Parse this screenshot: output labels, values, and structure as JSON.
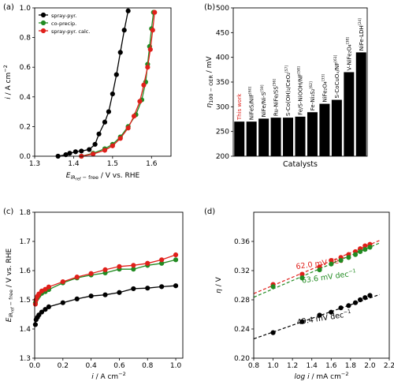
{
  "chart_data": [
    {
      "panel": "(a)",
      "type": "line",
      "xlabel_main": "E",
      "xlabel_sub": "iR",
      "xlabel_subsub": "ref",
      "xlabel_subtail": " − free",
      "xlabel_tail": " / V vs. RHE",
      "ylabel_main": "i",
      "ylabel_tail": " / A cm",
      "ylabel_sup": "−2",
      "xlim": [
        1.3,
        1.65
      ],
      "ylim": [
        0,
        1.0
      ],
      "xticks": [
        "1.3",
        "1.4",
        "1.5",
        "1.6"
      ],
      "yticks": [
        "0.0",
        "0.2",
        "0.4",
        "0.6",
        "0.8",
        "1.0"
      ],
      "legend": {
        "position": "top-left"
      },
      "series": [
        {
          "name": "spray-pyr.",
          "color": "#000000",
          "points": [
            [
              1.36,
              0.0
            ],
            [
              1.38,
              0.01
            ],
            [
              1.39,
              0.02
            ],
            [
              1.405,
              0.03
            ],
            [
              1.42,
              0.035
            ],
            [
              1.44,
              0.045
            ],
            [
              1.455,
              0.08
            ],
            [
              1.465,
              0.15
            ],
            [
              1.48,
              0.23
            ],
            [
              1.49,
              0.3
            ],
            [
              1.5,
              0.42
            ],
            [
              1.51,
              0.55
            ],
            [
              1.52,
              0.7
            ],
            [
              1.53,
              0.85
            ],
            [
              1.54,
              0.98
            ]
          ]
        },
        {
          "name": "co-precip.",
          "color": "#228B22",
          "points": [
            [
              1.42,
              0.0
            ],
            [
              1.45,
              0.02
            ],
            [
              1.48,
              0.05
            ],
            [
              1.5,
              0.08
            ],
            [
              1.52,
              0.13
            ],
            [
              1.54,
              0.2
            ],
            [
              1.56,
              0.28
            ],
            [
              1.575,
              0.38
            ],
            [
              1.585,
              0.5
            ],
            [
              1.59,
              0.62
            ],
            [
              1.595,
              0.74
            ],
            [
              1.6,
              0.86
            ],
            [
              1.605,
              0.97
            ]
          ]
        },
        {
          "name": "spray-pyr. calc.",
          "color": "#E0201B",
          "points": [
            [
              1.42,
              0.0
            ],
            [
              1.45,
              0.015
            ],
            [
              1.48,
              0.04
            ],
            [
              1.5,
              0.07
            ],
            [
              1.52,
              0.12
            ],
            [
              1.54,
              0.19
            ],
            [
              1.555,
              0.27
            ],
            [
              1.57,
              0.37
            ],
            [
              1.58,
              0.48
            ],
            [
              1.59,
              0.6
            ],
            [
              1.597,
              0.72
            ],
            [
              1.603,
              0.85
            ],
            [
              1.608,
              0.97
            ]
          ]
        }
      ]
    },
    {
      "panel": "(b)",
      "type": "bar",
      "xlabel": "Catalysts",
      "ylabel_main": "η",
      "ylabel_sub": "100 − OER",
      "ylabel_tail": " / mV",
      "ylim": [
        200,
        500
      ],
      "yticks": [
        "200",
        "250",
        "300",
        "350",
        "400",
        "450",
        "500"
      ],
      "categories": [
        {
          "label": "This work",
          "ref": "",
          "color": "#E0201B"
        },
        {
          "label": "NiFeS/NIF",
          "ref": "[60]",
          "color": "#000000"
        },
        {
          "label": "NiFe/Ni-S",
          "ref": "[59]",
          "color": "#000000"
        },
        {
          "label": "Ru-NiFe/SS",
          "ref": "[56]",
          "color": "#000000"
        },
        {
          "label": "S-Co(OH)₂/CeO₂",
          "ref": "[57]",
          "color": "#000000"
        },
        {
          "label": "Fe/S-NiOOH/NF",
          "ref": "[58]",
          "color": "#000000"
        },
        {
          "label": "Fe-Ni₃S₂",
          "ref": "[62]",
          "color": "#000000"
        },
        {
          "label": "NiFe₂O₄",
          "ref": "[33]",
          "color": "#000000"
        },
        {
          "label": "S-CoCuOₓ/NF",
          "ref": "[61]",
          "color": "#000000"
        },
        {
          "label": "V-NiFe₂O₄",
          "ref": "[38]",
          "color": "#000000"
        },
        {
          "label": "NiFe-LDH",
          "ref": "[24]",
          "color": "#000000"
        }
      ],
      "values": [
        270,
        270,
        276,
        278,
        278,
        280,
        289,
        306,
        314,
        370,
        410
      ]
    },
    {
      "panel": "(c)",
      "type": "line",
      "xlabel_main": "i",
      "xlabel_tail": " / A cm",
      "xlabel_sup": "−2",
      "ylabel_main": "E",
      "ylabel_sub": "iR",
      "ylabel_subsub": "ref",
      "ylabel_subtail": " − free",
      "ylabel_tail": " / V vs. RHE",
      "xlim": [
        0,
        1.05
      ],
      "ylim": [
        1.3,
        1.8
      ],
      "xticks": [
        "0.0",
        "0.2",
        "0.4",
        "0.6",
        "0.8",
        "1.0"
      ],
      "yticks": [
        "1.3",
        "1.4",
        "1.5",
        "1.6",
        "1.7",
        "1.8"
      ],
      "series": [
        {
          "name": "spray-pyr.",
          "color": "#000000",
          "points": [
            [
              0.005,
              1.415
            ],
            [
              0.01,
              1.432
            ],
            [
              0.02,
              1.44
            ],
            [
              0.03,
              1.448
            ],
            [
              0.05,
              1.458
            ],
            [
              0.075,
              1.467
            ],
            [
              0.1,
              1.476
            ],
            [
              0.2,
              1.49
            ],
            [
              0.3,
              1.503
            ],
            [
              0.4,
              1.513
            ],
            [
              0.5,
              1.517
            ],
            [
              0.6,
              1.525
            ],
            [
              0.7,
              1.538
            ],
            [
              0.8,
              1.54
            ],
            [
              0.9,
              1.545
            ],
            [
              1.0,
              1.548
            ]
          ]
        },
        {
          "name": "co-precip.",
          "color": "#228B22",
          "points": [
            [
              0.005,
              1.49
            ],
            [
              0.01,
              1.5
            ],
            [
              0.02,
              1.507
            ],
            [
              0.03,
              1.514
            ],
            [
              0.05,
              1.522
            ],
            [
              0.075,
              1.528
            ],
            [
              0.1,
              1.535
            ],
            [
              0.2,
              1.558
            ],
            [
              0.3,
              1.575
            ],
            [
              0.4,
              1.585
            ],
            [
              0.5,
              1.592
            ],
            [
              0.6,
              1.605
            ],
            [
              0.7,
              1.605
            ],
            [
              0.8,
              1.618
            ],
            [
              0.9,
              1.625
            ],
            [
              1.0,
              1.637
            ]
          ]
        },
        {
          "name": "spray-pyr. calc.",
          "color": "#E0201B",
          "points": [
            [
              0.005,
              1.485
            ],
            [
              0.01,
              1.5
            ],
            [
              0.02,
              1.512
            ],
            [
              0.03,
              1.52
            ],
            [
              0.05,
              1.53
            ],
            [
              0.075,
              1.536
            ],
            [
              0.1,
              1.544
            ],
            [
              0.2,
              1.562
            ],
            [
              0.3,
              1.578
            ],
            [
              0.4,
              1.59
            ],
            [
              0.5,
              1.603
            ],
            [
              0.6,
              1.614
            ],
            [
              0.7,
              1.618
            ],
            [
              0.8,
              1.625
            ],
            [
              0.9,
              1.637
            ],
            [
              1.0,
              1.654
            ]
          ]
        }
      ]
    },
    {
      "panel": "(d)",
      "type": "scatter",
      "xlabel_main": "log i",
      "xlabel_tail": " / mA cm",
      "xlabel_sup": "−2",
      "ylabel_main": "η",
      "ylabel_tail": " / V",
      "xlim": [
        0.8,
        2.2
      ],
      "ylim": [
        0.2,
        0.4
      ],
      "xticks": [
        "0.8",
        "1.0",
        "1.2",
        "1.4",
        "1.6",
        "1.8",
        "2.0",
        "2.2"
      ],
      "yticks": [
        "0.20",
        "0.24",
        "0.28",
        "0.32",
        "0.36"
      ],
      "series": [
        {
          "name": "spray-pyr. calc.",
          "color": "#E0201B",
          "tafel": "62.0 mV dec",
          "fit": [
            [
              0.8,
              0.2885
            ],
            [
              2.1,
              0.3613
            ]
          ],
          "points": [
            [
              1.0,
              0.301
            ],
            [
              1.3,
              0.315
            ],
            [
              1.48,
              0.325
            ],
            [
              1.6,
              0.334
            ],
            [
              1.7,
              0.338
            ],
            [
              1.78,
              0.342
            ],
            [
              1.85,
              0.346
            ],
            [
              1.9,
              0.35
            ],
            [
              1.95,
              0.354
            ],
            [
              2.0,
              0.356
            ]
          ]
        },
        {
          "name": "co-precip.",
          "color": "#228B22",
          "tafel": "63.6 mV dec",
          "fit": [
            [
              0.8,
              0.2835
            ],
            [
              2.1,
              0.3578
            ]
          ],
          "points": [
            [
              1.0,
              0.298
            ],
            [
              1.3,
              0.31
            ],
            [
              1.48,
              0.321
            ],
            [
              1.6,
              0.329
            ],
            [
              1.7,
              0.334
            ],
            [
              1.78,
              0.338
            ],
            [
              1.85,
              0.342
            ],
            [
              1.9,
              0.346
            ],
            [
              1.95,
              0.349
            ],
            [
              2.0,
              0.352
            ]
          ]
        },
        {
          "name": "spray-pyr.",
          "color": "#000000",
          "tafel": "49.4 mV dec",
          "fit": [
            [
              0.8,
              0.2265
            ],
            [
              2.1,
              0.2872
            ]
          ],
          "points": [
            [
              1.0,
              0.235
            ],
            [
              1.3,
              0.25
            ],
            [
              1.48,
              0.259
            ],
            [
              1.6,
              0.263
            ],
            [
              1.7,
              0.269
            ],
            [
              1.78,
              0.272
            ],
            [
              1.85,
              0.276
            ],
            [
              1.9,
              0.28
            ],
            [
              1.95,
              0.283
            ],
            [
              2.0,
              0.286
            ]
          ]
        }
      ],
      "tafel_sup": "−1"
    }
  ]
}
